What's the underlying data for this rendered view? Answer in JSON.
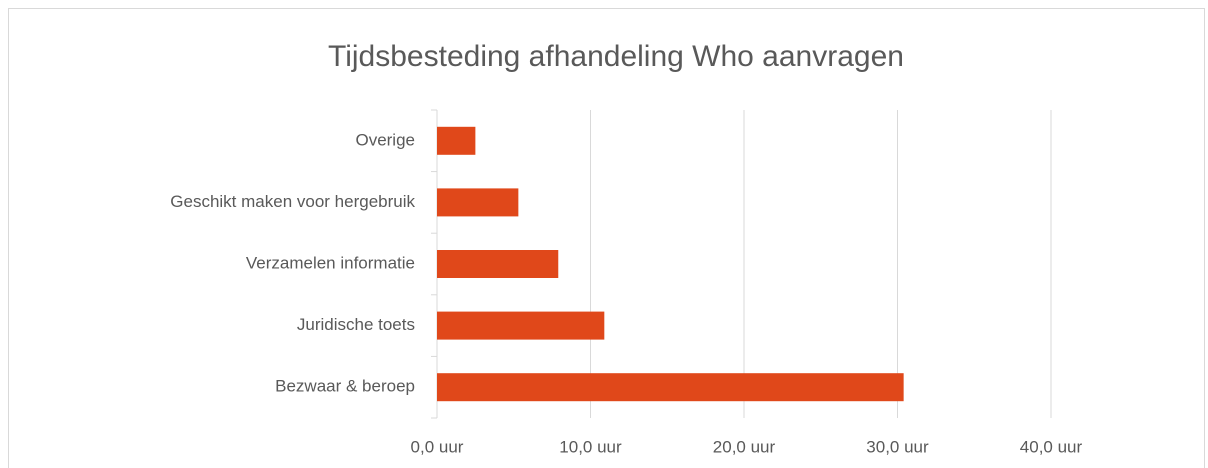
{
  "chart_data": {
    "type": "bar",
    "orientation": "horizontal",
    "title": "Tijdsbesteding afhandeling Who aanvragen",
    "categories": [
      "Overige",
      "Geschikt maken voor hergebruik",
      "Verzamelen informatie",
      "Juridische toets",
      "Bezwaar & beroep"
    ],
    "values": [
      2.5,
      5.3,
      7.9,
      10.9,
      30.4
    ],
    "color": "#e0481a",
    "xlim": [
      0,
      40
    ],
    "xticks": [
      {
        "value": 0,
        "label": "0,0 uur"
      },
      {
        "value": 10,
        "label": "10,0 uur"
      },
      {
        "value": 20,
        "label": "20,0 uur"
      },
      {
        "value": 30,
        "label": "30,0 uur"
      },
      {
        "value": 40,
        "label": "40,0 uur"
      }
    ],
    "grid": true
  }
}
